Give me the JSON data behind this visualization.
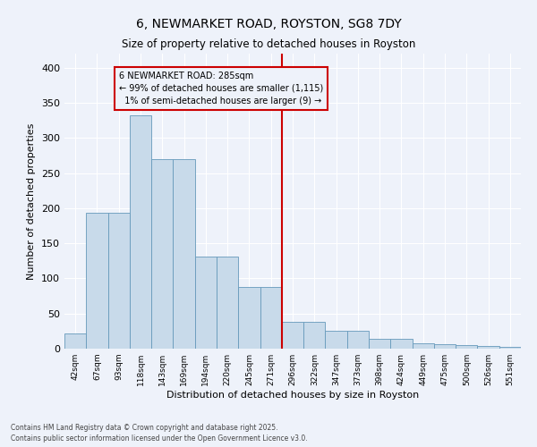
{
  "title": "6, NEWMARKET ROAD, ROYSTON, SG8 7DY",
  "subtitle": "Size of property relative to detached houses in Royston",
  "xlabel": "Distribution of detached houses by size in Royston",
  "ylabel": "Number of detached properties",
  "categories": [
    "42sqm",
    "67sqm",
    "93sqm",
    "118sqm",
    "143sqm",
    "169sqm",
    "194sqm",
    "220sqm",
    "245sqm",
    "271sqm",
    "296sqm",
    "322sqm",
    "347sqm",
    "373sqm",
    "398sqm",
    "424sqm",
    "449sqm",
    "475sqm",
    "500sqm",
    "526sqm",
    "551sqm"
  ],
  "values": [
    22,
    193,
    193,
    332,
    270,
    270,
    131,
    131,
    88,
    88,
    38,
    38,
    25,
    25,
    14,
    14,
    8,
    7,
    5,
    4,
    2
  ],
  "bar_color": "#c8daea",
  "bar_edge_color": "#6699bb",
  "vline_x_index": 10,
  "vline_color": "#cc0000",
  "annotation_text": "6 NEWMARKET ROAD: 285sqm\n← 99% of detached houses are smaller (1,115)\n  1% of semi-detached houses are larger (9) →",
  "annotation_box_color": "#cc0000",
  "ylim": [
    0,
    420
  ],
  "yticks": [
    0,
    50,
    100,
    150,
    200,
    250,
    300,
    350,
    400
  ],
  "bg_color": "#eef2fa",
  "grid_color": "#ffffff",
  "footnote": "Contains HM Land Registry data © Crown copyright and database right 2025.\nContains public sector information licensed under the Open Government Licence v3.0."
}
